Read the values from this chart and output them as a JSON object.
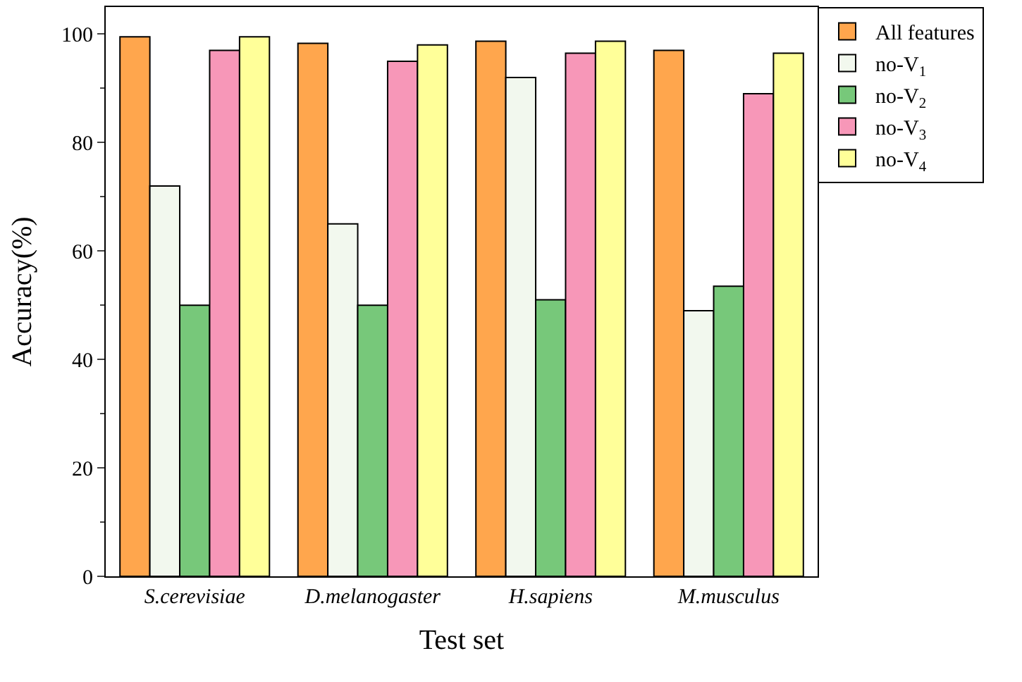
{
  "chart_data": {
    "type": "bar",
    "xlabel": "Test set",
    "ylabel": "Accuracy(%)",
    "categories": [
      "S.cerevisiae",
      "D.melanogaster",
      "H.sapiens",
      "M.musculus"
    ],
    "series": [
      {
        "name": "All features",
        "color": "#ffa64d",
        "values": [
          99.5,
          98.3,
          98.7,
          97
        ]
      },
      {
        "name": "no-V$_{1}$",
        "color": "#f2f8ee",
        "values": [
          72,
          65,
          92,
          49
        ]
      },
      {
        "name": "no-V$_{2}$",
        "color": "#77c87a",
        "values": [
          50,
          50,
          51,
          53.5
        ]
      },
      {
        "name": "no-V$_{3}$",
        "color": "#f797b8",
        "values": [
          97,
          95,
          96.5,
          89
        ]
      },
      {
        "name": "no-V$_{4}$",
        "color": "#ffff99",
        "values": [
          99.5,
          98,
          98.7,
          96.5
        ]
      }
    ],
    "ylim": [
      0,
      105
    ],
    "yticks": [
      0,
      20,
      40,
      60,
      80,
      100
    ],
    "legend": "top right"
  }
}
